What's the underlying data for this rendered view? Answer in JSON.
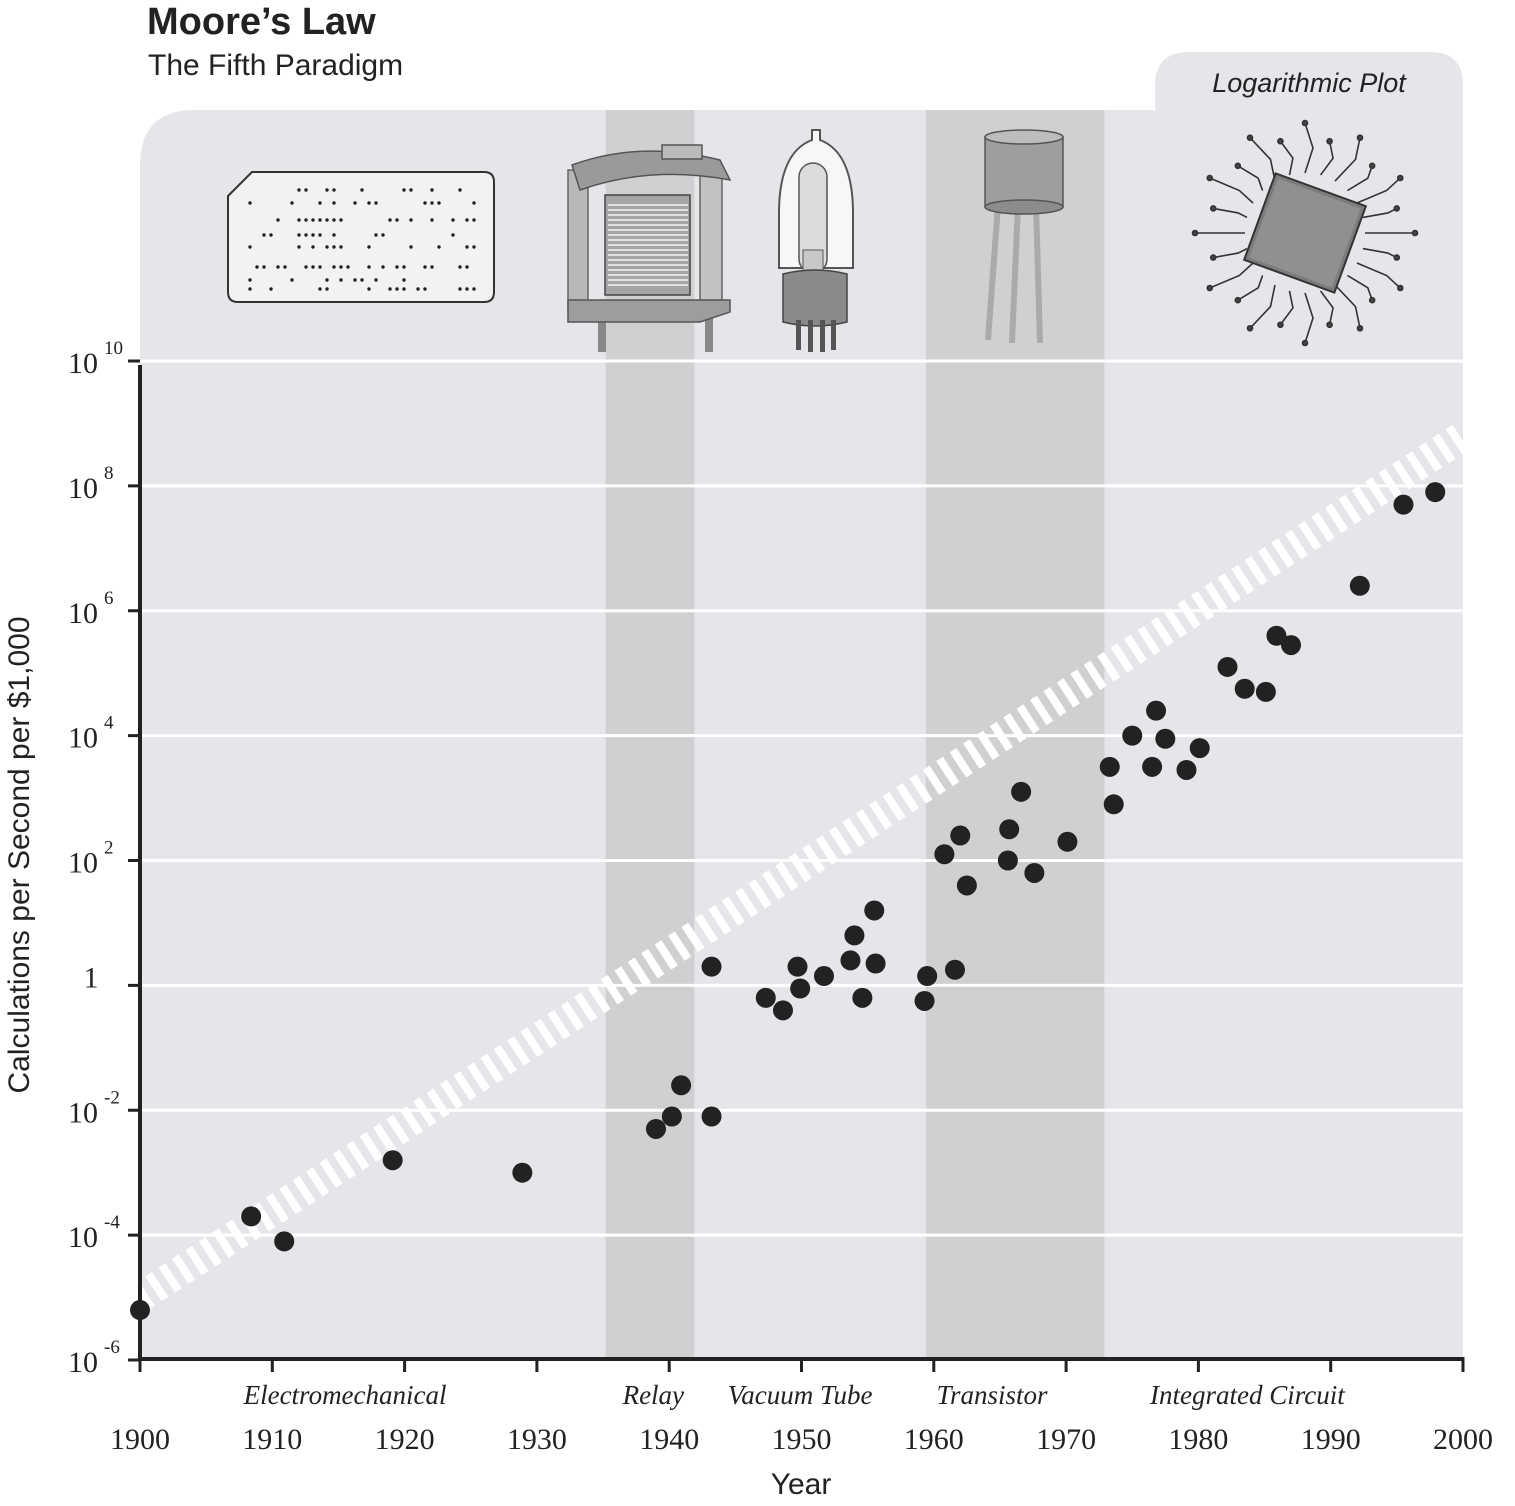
{
  "title": "Moore’s Law",
  "subtitle": "The Fifth Paradigm",
  "badge": "Logarithmic Plot",
  "icons": [
    "punch-card-icon",
    "relay-icon",
    "vacuum-tube-icon",
    "transistor-icon",
    "integrated-circuit-icon"
  ],
  "colors": {
    "plot_bg": "#e6e6ea",
    "band": "#d0d0d2",
    "grid": "#ffffff",
    "point": "#222222",
    "trend": "#ffffff",
    "axis": "#222222"
  },
  "chart_data": {
    "type": "scatter",
    "title": "Moore’s Law",
    "subtitle": "The Fifth Paradigm",
    "xlabel": "Year",
    "ylabel": "Calculations per Second per $1,000",
    "xlim": [
      1900,
      2000
    ],
    "ylim": [
      -6,
      10
    ],
    "y_scale": "log10",
    "grid": true,
    "x_ticks": [
      "1900",
      "1910",
      "1920",
      "1930",
      "1940",
      "1950",
      "1960",
      "1970",
      "1980",
      "1990",
      "2000"
    ],
    "y_ticks": [
      {
        "exp": -6,
        "base": "10",
        "sup": "-6"
      },
      {
        "exp": -4,
        "base": "10",
        "sup": "-4"
      },
      {
        "exp": -2,
        "base": "10",
        "sup": "-2"
      },
      {
        "exp": 0,
        "base": "1",
        "sup": ""
      },
      {
        "exp": 2,
        "base": "10",
        "sup": "2"
      },
      {
        "exp": 4,
        "base": "10",
        "sup": "4"
      },
      {
        "exp": 6,
        "base": "10",
        "sup": "6"
      },
      {
        "exp": 8,
        "base": "10",
        "sup": "8"
      },
      {
        "exp": 10,
        "base": "10",
        "sup": "10"
      }
    ],
    "eras": [
      {
        "label": "Electromechanical",
        "x": 1915.5
      },
      {
        "label": "Relay",
        "x": 1938.8
      },
      {
        "label": "Vacuum Tube",
        "x": 1949.9
      },
      {
        "label": "Transistor",
        "x": 1964.4
      },
      {
        "label": "Integrated Circuit",
        "x": 1983.7
      }
    ],
    "bands": [
      {
        "x": [
          1935.2,
          1941.9
        ]
      },
      {
        "x": [
          1959.4,
          1972.9
        ]
      }
    ],
    "trend": {
      "x": [
        1900,
        2000
      ],
      "y": [
        -5.0,
        8.8
      ]
    },
    "points": [
      {
        "x": 1900.0,
        "y": -5.2
      },
      {
        "x": 1908.4,
        "y": -3.7
      },
      {
        "x": 1910.9,
        "y": -4.1
      },
      {
        "x": 1919.1,
        "y": -2.8
      },
      {
        "x": 1928.9,
        "y": -3.0
      },
      {
        "x": 1939.0,
        "y": -2.3
      },
      {
        "x": 1940.2,
        "y": -2.1
      },
      {
        "x": 1940.9,
        "y": -1.6
      },
      {
        "x": 1943.2,
        "y": -2.1
      },
      {
        "x": 1943.2,
        "y": 0.3
      },
      {
        "x": 1947.3,
        "y": -0.2
      },
      {
        "x": 1948.6,
        "y": -0.4
      },
      {
        "x": 1949.7,
        "y": 0.3
      },
      {
        "x": 1949.9,
        "y": -0.05
      },
      {
        "x": 1951.7,
        "y": 0.15
      },
      {
        "x": 1953.7,
        "y": 0.4
      },
      {
        "x": 1954.0,
        "y": 0.8
      },
      {
        "x": 1954.6,
        "y": -0.2
      },
      {
        "x": 1955.5,
        "y": 1.2
      },
      {
        "x": 1955.6,
        "y": 0.35
      },
      {
        "x": 1959.3,
        "y": -0.25
      },
      {
        "x": 1959.5,
        "y": 0.15
      },
      {
        "x": 1960.8,
        "y": 2.1
      },
      {
        "x": 1961.6,
        "y": 0.25
      },
      {
        "x": 1962.0,
        "y": 2.4
      },
      {
        "x": 1962.5,
        "y": 1.6
      },
      {
        "x": 1965.6,
        "y": 2.0
      },
      {
        "x": 1965.7,
        "y": 2.5
      },
      {
        "x": 1966.6,
        "y": 3.1
      },
      {
        "x": 1967.6,
        "y": 1.8
      },
      {
        "x": 1970.1,
        "y": 2.3
      },
      {
        "x": 1973.3,
        "y": 3.5
      },
      {
        "x": 1973.6,
        "y": 2.9
      },
      {
        "x": 1975.0,
        "y": 4.0
      },
      {
        "x": 1976.5,
        "y": 3.5
      },
      {
        "x": 1976.8,
        "y": 4.4
      },
      {
        "x": 1977.5,
        "y": 3.95
      },
      {
        "x": 1979.1,
        "y": 3.45
      },
      {
        "x": 1980.1,
        "y": 3.8
      },
      {
        "x": 1982.2,
        "y": 5.1
      },
      {
        "x": 1983.5,
        "y": 4.75
      },
      {
        "x": 1985.1,
        "y": 4.7
      },
      {
        "x": 1985.9,
        "y": 5.6
      },
      {
        "x": 1987.0,
        "y": 5.45
      },
      {
        "x": 1992.2,
        "y": 6.4
      },
      {
        "x": 1995.5,
        "y": 7.7
      },
      {
        "x": 1997.9,
        "y": 7.9
      }
    ]
  }
}
